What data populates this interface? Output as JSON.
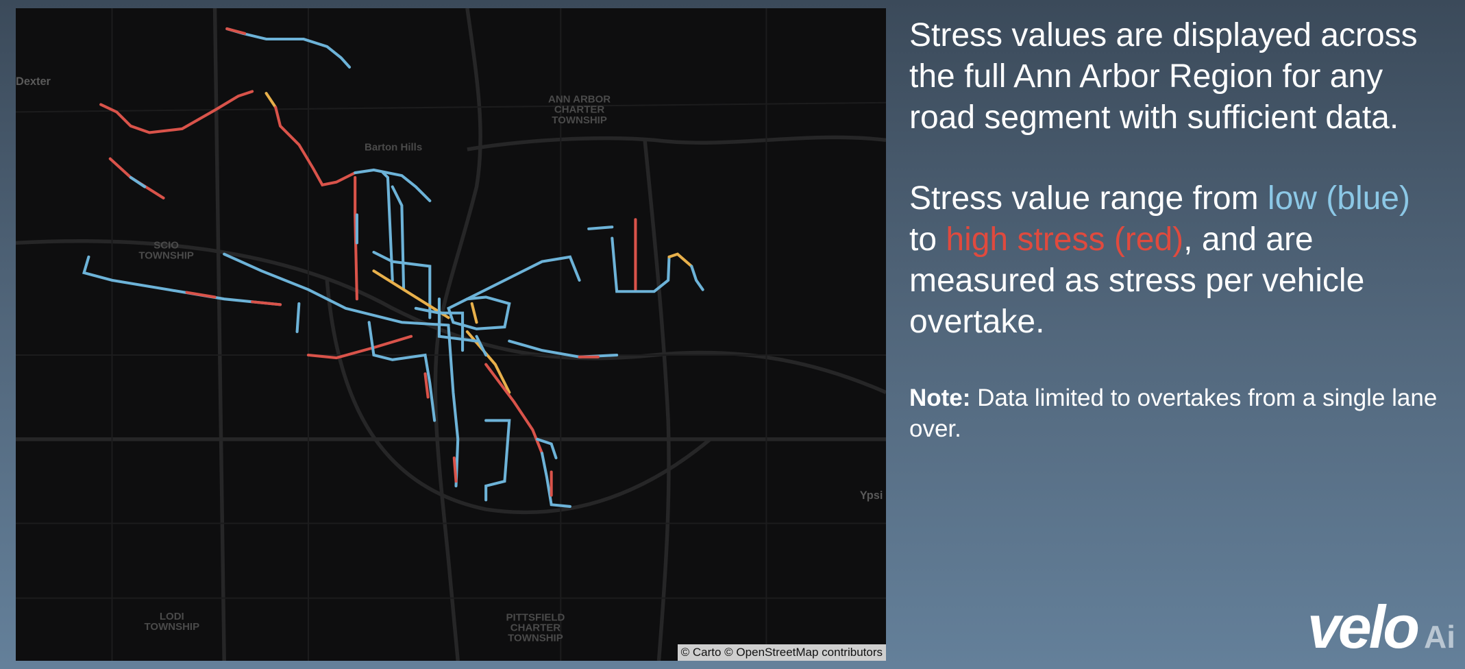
{
  "map": {
    "labels": [
      "Dexter",
      "Barton Hills",
      "ANN ARBOR",
      "CHARTER",
      "TOWNSHIP",
      "SCIO",
      "TOWNSHIP",
      "LODI",
      "TOWNSHIP",
      "PITTSFIELD",
      "CHARTER",
      "TOWNSHIP",
      "Ypsi"
    ],
    "attribution": "© Carto © OpenStreetMap contributors"
  },
  "panel": {
    "intro": "Stress values are displayed across the full Ann Arbor Region for any road segment with sufficient data.",
    "range": {
      "lead": "Stress value range from",
      "low": "low (blue)",
      "to": "to",
      "high": "high stress (red)",
      "tail": ", and are measured as stress per vehicle overtake."
    },
    "note": {
      "label": "Note:",
      "text": "Data limited to overtakes from a single lane over."
    }
  },
  "logo": {
    "wordmark": "velo",
    "suffix": "Ai"
  }
}
